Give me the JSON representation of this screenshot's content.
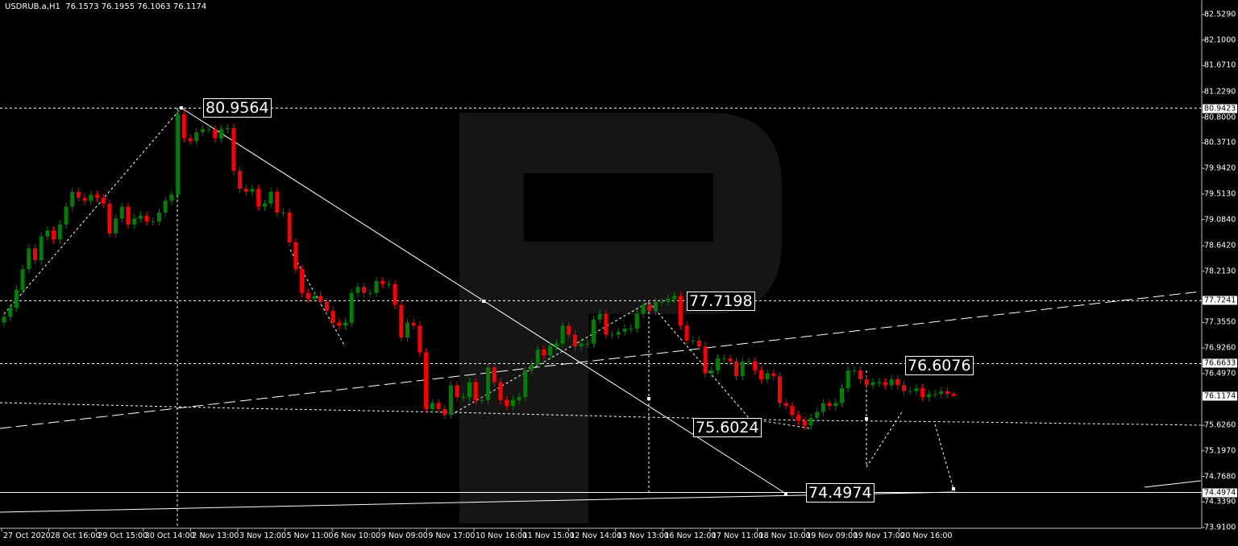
{
  "header": {
    "symbol": "USDRUB.a,H1",
    "ohlc": "76.1573 76.1955 76.1063 76.1174"
  },
  "colors": {
    "bull": "#008000",
    "bear": "#ff0000",
    "background": "#000000",
    "foreground": "#ffffff",
    "watermark": "#151515"
  },
  "chart_data": {
    "type": "candlestick",
    "title": "USDRUB.a,H1",
    "ylim": [
      73.91,
      82.529
    ],
    "grid": false,
    "y_ticks": [
      "82.5290",
      "82.1000",
      "81.6710",
      "81.2290",
      "80.8000",
      "80.3710",
      "79.9420",
      "79.5130",
      "79.0840",
      "78.6420",
      "78.2130",
      "77.3550",
      "76.9260",
      "76.4970",
      "75.6260",
      "75.1970",
      "74.7680",
      "74.3390",
      "73.9100"
    ],
    "y_highlight": [
      "80.9423",
      "77.7241",
      "76.6633",
      "76.1174",
      "74.4974"
    ],
    "x_ticks": [
      "27 Oct 2020",
      "28 Oct 16:00",
      "29 Oct 15:00",
      "30 Oct 14:00",
      "2 Nov 13:00",
      "3 Nov 12:00",
      "5 Nov 11:00",
      "6 Nov 10:00",
      "9 Nov 09:00",
      "9 Nov 17:00",
      "10 Nov 16:00",
      "11 Nov 15:00",
      "12 Nov 14:00",
      "13 Nov 13:00",
      "16 Nov 12:00",
      "17 Nov 11:00",
      "18 Nov 10:00",
      "19 Nov 09:00",
      "19 Nov 17:00",
      "20 Nov 16:00"
    ],
    "level_labels": [
      "80.9564",
      "77.7198",
      "76.6076",
      "75.6024",
      "74.4974"
    ],
    "closes": [
      77.45,
      77.6,
      77.9,
      78.25,
      78.6,
      78.4,
      78.8,
      78.9,
      78.75,
      79.0,
      79.3,
      79.55,
      79.45,
      79.4,
      79.5,
      79.45,
      79.35,
      78.85,
      79.1,
      79.3,
      79.0,
      79.1,
      79.15,
      79.05,
      79.05,
      79.2,
      79.4,
      79.5,
      80.85,
      80.45,
      80.4,
      80.55,
      80.6,
      80.6,
      80.45,
      80.6,
      80.62,
      79.9,
      79.6,
      79.55,
      79.6,
      79.3,
      79.35,
      79.55,
      79.2,
      79.2,
      78.7,
      78.25,
      77.85,
      77.75,
      77.8,
      77.7,
      77.55,
      77.35,
      77.3,
      77.35,
      77.85,
      77.95,
      77.85,
      77.85,
      78.05,
      78.0,
      78.0,
      77.65,
      77.1,
      77.35,
      77.3,
      76.85,
      75.9,
      76.0,
      75.9,
      75.8,
      76.3,
      76.1,
      76.1,
      76.35,
      76.05,
      76.05,
      76.6,
      76.35,
      76.05,
      75.95,
      76.05,
      76.1,
      76.55,
      76.65,
      76.9,
      76.8,
      76.95,
      77.0,
      77.3,
      77.15,
      76.95,
      77.0,
      77.0,
      77.4,
      77.5,
      77.15,
      77.15,
      77.2,
      77.25,
      77.25,
      77.5,
      77.65,
      77.55,
      77.7,
      77.7,
      77.75,
      77.8,
      77.3,
      77.05,
      77.05,
      76.95,
      76.5,
      76.55,
      76.75,
      76.75,
      76.7,
      76.45,
      76.7,
      76.7,
      76.55,
      76.4,
      76.5,
      76.45,
      76.0,
      75.95,
      75.8,
      75.7,
      75.62,
      75.75,
      75.85,
      76.0,
      75.95,
      76.0,
      76.25,
      76.55,
      76.55,
      76.4,
      76.3,
      76.35,
      76.35,
      76.3,
      76.4,
      76.3,
      76.2,
      76.2,
      76.25,
      76.1,
      76.15,
      76.15,
      76.2,
      76.15,
      76.1174
    ],
    "first_open": 77.35,
    "last_ohlc": [
      76.1573,
      76.1955,
      76.1063,
      76.1174
    ]
  }
}
